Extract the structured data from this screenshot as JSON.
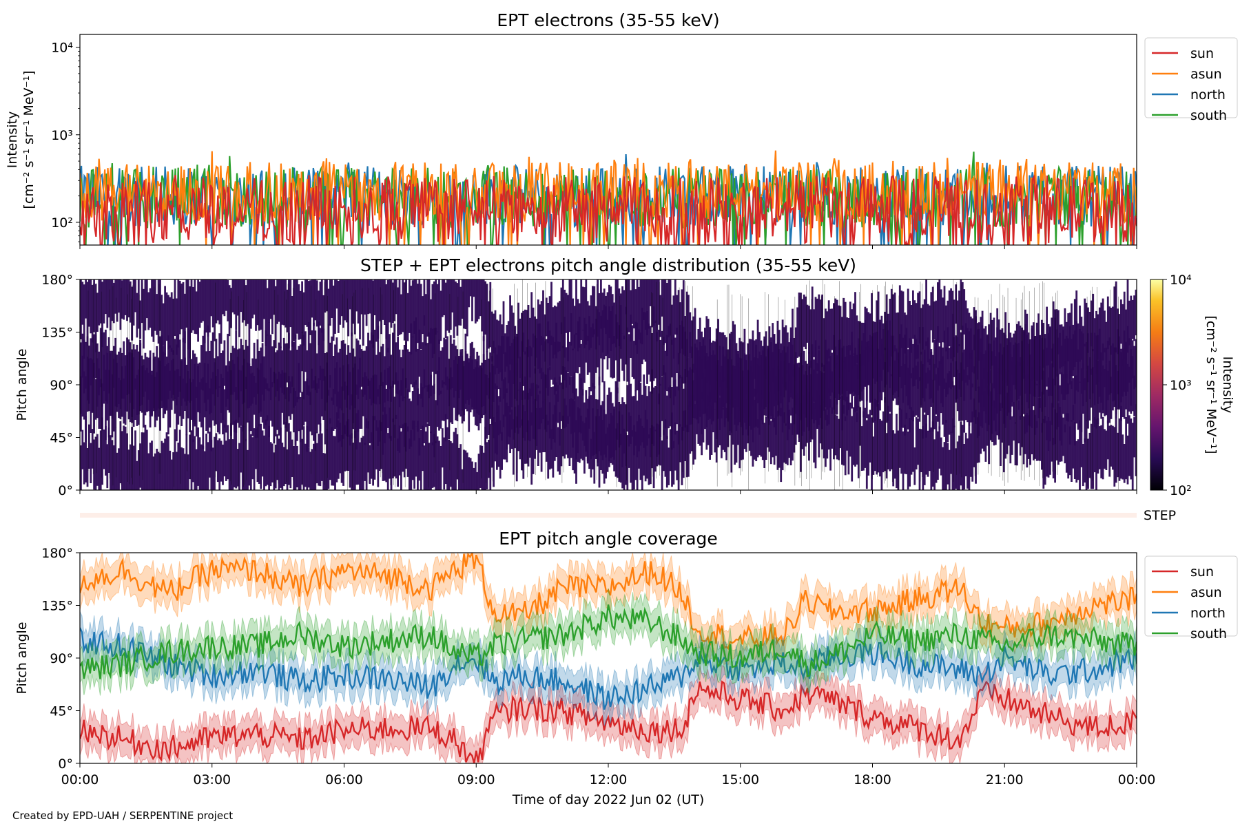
{
  "footer": "Created by EPD-UAH / SERPENTINE project",
  "chart_data": [
    {
      "id": "intensity",
      "type": "line",
      "title": "EPT electrons (35-55 keV)",
      "ylabel": "Intensity",
      "yunit": "[cm⁻² s⁻¹ sr⁻¹ MeV⁻¹]",
      "yscale": "log",
      "ylim": [
        55,
        14000
      ],
      "yticks": [
        {
          "value": 100,
          "label": "10²"
        },
        {
          "value": 1000,
          "label": "10³"
        },
        {
          "value": 10000,
          "label": "10⁴"
        }
      ],
      "xlim": [
        "2022-06-02 00:00",
        "2022-06-03 00:00"
      ],
      "legend": "outside-right-top",
      "series": [
        {
          "name": "sun",
          "color": "#d62728",
          "baseline": 140,
          "spread": 0.55,
          "spikes": [
            [
              2.2,
              240
            ],
            [
              5.8,
              260
            ],
            [
              13.9,
              230
            ],
            [
              19.4,
              250
            ]
          ]
        },
        {
          "name": "asun",
          "color": "#ff7f0e",
          "baseline": 220,
          "spread": 0.5,
          "spikes": [
            [
              3.0,
              650
            ],
            [
              10.2,
              560
            ],
            [
              15.8,
              660
            ],
            [
              20.9,
              520
            ]
          ]
        },
        {
          "name": "north",
          "color": "#1f77b4",
          "baseline": 200,
          "spread": 0.5,
          "spikes": [
            [
              12.4,
              600
            ],
            [
              1.4,
              430
            ],
            [
              18.7,
              440
            ]
          ]
        },
        {
          "name": "south",
          "color": "#2ca02c",
          "baseline": 190,
          "spread": 0.5,
          "spikes": [
            [
              3.4,
              570
            ],
            [
              20.3,
              640
            ],
            [
              21.3,
              390
            ]
          ]
        }
      ]
    },
    {
      "id": "pad",
      "type": "heatmap",
      "title": "STEP + EPT electrons pitch angle distribution (35-55 keV)",
      "ylabel": "Pitch angle",
      "ylim": [
        0,
        180
      ],
      "yticks": [
        "0°",
        "45°",
        "90°",
        "135°",
        "180°"
      ],
      "xlim": [
        "2022-06-02 00:00",
        "2022-06-03 00:00"
      ],
      "colorbar": {
        "label": "Intensity",
        "unit": "[cm⁻² s⁻¹ sr⁻¹ MeV⁻¹]",
        "scale": "log",
        "range": [
          100,
          10000
        ],
        "ticks": [
          "10²",
          "10³",
          "10⁴"
        ],
        "colormap": "inferno"
      },
      "fill_color": "#2d0a55"
    },
    {
      "id": "step",
      "type": "bar",
      "label": "STEP",
      "color": "#fdeee8"
    },
    {
      "id": "coverage",
      "type": "area",
      "title": "EPT pitch angle coverage",
      "ylabel": "Pitch angle",
      "xlabel": "Time of day 2022 Jun 02 (UT)",
      "ylim": [
        0,
        180
      ],
      "yticks": [
        "0°",
        "45°",
        "90°",
        "135°",
        "180°"
      ],
      "xticks": [
        "00:00",
        "03:00",
        "06:00",
        "09:00",
        "12:00",
        "15:00",
        "18:00",
        "21:00",
        "00:00"
      ],
      "legend": "outside-right-top",
      "series": [
        {
          "name": "sun",
          "color": "#d62728",
          "halfwidth": 14,
          "knots": [
            [
              0,
              30
            ],
            [
              1,
              20
            ],
            [
              2,
              12
            ],
            [
              3,
              22
            ],
            [
              4,
              25
            ],
            [
              5,
              20
            ],
            [
              6,
              28
            ],
            [
              7,
              30
            ],
            [
              8,
              30
            ],
            [
              8.5,
              20
            ],
            [
              9,
              0
            ],
            [
              9.4,
              40
            ],
            [
              10,
              48
            ],
            [
              11,
              45
            ],
            [
              12,
              35
            ],
            [
              13,
              28
            ],
            [
              13.7,
              30
            ],
            [
              14,
              65
            ],
            [
              15,
              55
            ],
            [
              16,
              45
            ],
            [
              16.5,
              60
            ],
            [
              17,
              55
            ],
            [
              18,
              40
            ],
            [
              19,
              30
            ],
            [
              20,
              20
            ],
            [
              20.5,
              60
            ],
            [
              21,
              55
            ],
            [
              22,
              40
            ],
            [
              23,
              30
            ],
            [
              24,
              35
            ]
          ]
        },
        {
          "name": "asun",
          "color": "#ff7f0e",
          "halfwidth": 14,
          "knots": [
            [
              0,
              155
            ],
            [
              1,
              165
            ],
            [
              2,
              145
            ],
            [
              3,
              165
            ],
            [
              4,
              165
            ],
            [
              5,
              150
            ],
            [
              6,
              165
            ],
            [
              7,
              160
            ],
            [
              8,
              150
            ],
            [
              8.5,
              165
            ],
            [
              9,
              175
            ],
            [
              9.4,
              130
            ],
            [
              10,
              125
            ],
            [
              11,
              150
            ],
            [
              12,
              150
            ],
            [
              13,
              165
            ],
            [
              13.7,
              145
            ],
            [
              14,
              115
            ],
            [
              15,
              105
            ],
            [
              16,
              110
            ],
            [
              16.5,
              140
            ],
            [
              17,
              130
            ],
            [
              18,
              130
            ],
            [
              19,
              140
            ],
            [
              20,
              150
            ],
            [
              20.5,
              120
            ],
            [
              21,
              115
            ],
            [
              22,
              120
            ],
            [
              23,
              135
            ],
            [
              24,
              140
            ]
          ]
        },
        {
          "name": "north",
          "color": "#1f77b4",
          "halfwidth": 14,
          "knots": [
            [
              0,
              105
            ],
            [
              1,
              100
            ],
            [
              2,
              85
            ],
            [
              3,
              75
            ],
            [
              4,
              80
            ],
            [
              5,
              70
            ],
            [
              6,
              75
            ],
            [
              7,
              72
            ],
            [
              8,
              65
            ],
            [
              8.5,
              85
            ],
            [
              9,
              90
            ],
            [
              9.4,
              70
            ],
            [
              10,
              75
            ],
            [
              11,
              70
            ],
            [
              12,
              55
            ],
            [
              13,
              65
            ],
            [
              13.7,
              75
            ],
            [
              14,
              90
            ],
            [
              15,
              80
            ],
            [
              16,
              85
            ],
            [
              16.5,
              80
            ],
            [
              17,
              90
            ],
            [
              18,
              95
            ],
            [
              19,
              85
            ],
            [
              20,
              80
            ],
            [
              20.5,
              75
            ],
            [
              21,
              90
            ],
            [
              22,
              75
            ],
            [
              23,
              80
            ],
            [
              24,
              90
            ]
          ]
        },
        {
          "name": "south",
          "color": "#2ca02c",
          "halfwidth": 14,
          "knots": [
            [
              0,
              80
            ],
            [
              1,
              85
            ],
            [
              2,
              95
            ],
            [
              3,
              100
            ],
            [
              4,
              100
            ],
            [
              5,
              110
            ],
            [
              6,
              100
            ],
            [
              7,
              105
            ],
            [
              8,
              110
            ],
            [
              8.5,
              95
            ],
            [
              9,
              90
            ],
            [
              9.4,
              100
            ],
            [
              10,
              105
            ],
            [
              11,
              110
            ],
            [
              12,
              125
            ],
            [
              13,
              120
            ],
            [
              13.7,
              105
            ],
            [
              14,
              95
            ],
            [
              15,
              90
            ],
            [
              16,
              100
            ],
            [
              16.5,
              85
            ],
            [
              17,
              90
            ],
            [
              18,
              110
            ],
            [
              19,
              105
            ],
            [
              20,
              110
            ],
            [
              20.5,
              105
            ],
            [
              21,
              100
            ],
            [
              22,
              110
            ],
            [
              23,
              105
            ],
            [
              24,
              100
            ]
          ]
        }
      ]
    }
  ]
}
